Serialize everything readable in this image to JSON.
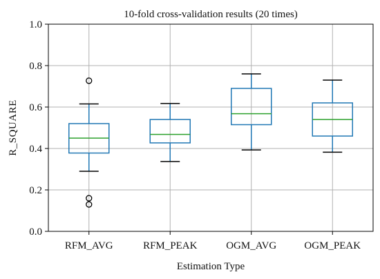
{
  "chart_data": {
    "type": "box",
    "title": "10-fold cross-validation results (20 times)",
    "xlabel": "Estimation Type",
    "ylabel": "R_SQUARE",
    "ylim": [
      0.0,
      1.0
    ],
    "yticks": [
      0.0,
      0.2,
      0.4,
      0.6,
      0.8,
      1.0
    ],
    "ytick_labels": [
      "0.0",
      "0.2",
      "0.4",
      "0.6",
      "0.8",
      "1.0"
    ],
    "grid": true,
    "categories": [
      "RFM_AVG",
      "RFM_PEAK",
      "OGM_AVG",
      "OGM_PEAK"
    ],
    "boxes": [
      {
        "name": "RFM_AVG",
        "whisker_low": 0.29,
        "q1": 0.378,
        "median": 0.45,
        "q3": 0.52,
        "whisker_high": 0.615,
        "outliers": [
          0.13,
          0.16,
          0.727
        ]
      },
      {
        "name": "RFM_PEAK",
        "whisker_low": 0.337,
        "q1": 0.427,
        "median": 0.468,
        "q3": 0.54,
        "whisker_high": 0.617,
        "outliers": []
      },
      {
        "name": "OGM_AVG",
        "whisker_low": 0.393,
        "q1": 0.515,
        "median": 0.568,
        "q3": 0.69,
        "whisker_high": 0.76,
        "outliers": []
      },
      {
        "name": "OGM_PEAK",
        "whisker_low": 0.382,
        "q1": 0.46,
        "median": 0.54,
        "q3": 0.62,
        "whisker_high": 0.73,
        "outliers": []
      }
    ],
    "colors": {
      "box": "#1f77b4",
      "median": "#2ca02c",
      "whisker": "#1f77b4",
      "cap": "#000000",
      "grid": "#b0b0b0",
      "axis": "#000000"
    }
  }
}
